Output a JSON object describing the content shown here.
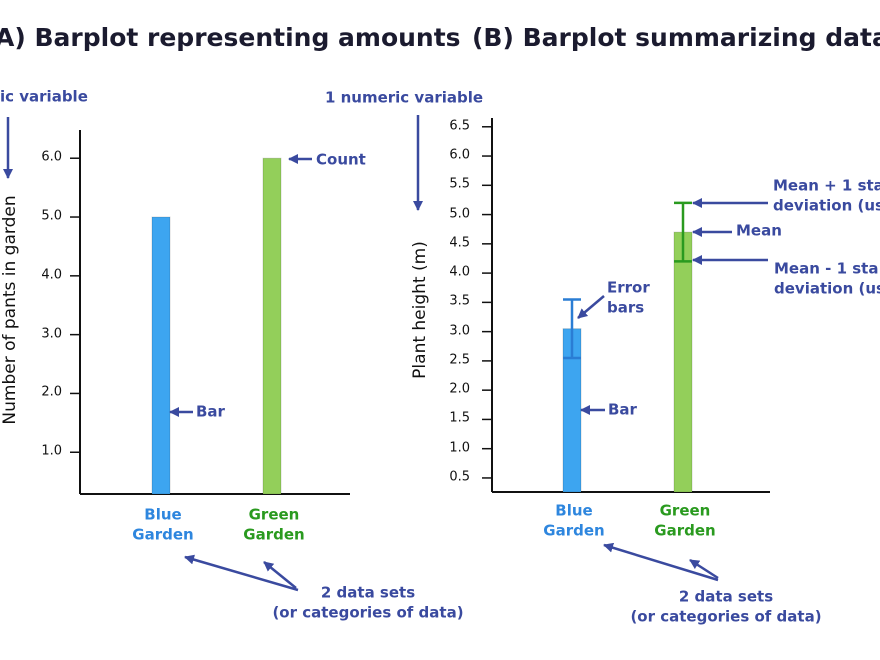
{
  "chart_data": [
    {
      "type": "bar",
      "title": "A) Barplot representing amounts",
      "ylabel": "Number of pants in garden",
      "categories": [
        "Blue\nGarden",
        "Green\nGarden"
      ],
      "values": [
        5.0,
        6.0
      ],
      "colors": [
        "#3da5f0",
        "#93cf5a"
      ],
      "label_colors": [
        "#2e86de",
        "#2a9a1f"
      ],
      "ylim": [
        0.29,
        6.48
      ],
      "yticks": [
        {
          "value": 1,
          "label": "1.0"
        },
        {
          "value": 2,
          "label": "2.0"
        },
        {
          "value": 3,
          "label": "3.0"
        },
        {
          "value": 4,
          "label": "4.0"
        },
        {
          "value": 5,
          "label": "5.0"
        },
        {
          "value": 6,
          "label": "6.0"
        }
      ],
      "annotation_color": "#3a4a9f",
      "annotations": [
        "ic variable",
        "Count",
        "Bar",
        "2 data sets\n(or categories of data)"
      ]
    },
    {
      "type": "bar",
      "title": "(B) Barplot summarizing data se",
      "ylabel": "Plant height (m)",
      "categories": [
        "Blue\nGarden",
        "Green\nGarden"
      ],
      "values": [
        3.05,
        4.7
      ],
      "errors": [
        0.5,
        0.5
      ],
      "colors": [
        "#3da5f0",
        "#93cf5a"
      ],
      "error_colors": [
        "#2a7dd4",
        "#2a9a1f"
      ],
      "label_colors": [
        "#2e86de",
        "#2a9a1f"
      ],
      "ylim": [
        0.26,
        6.65
      ],
      "yticks": [
        0.5,
        {
          "value": 1,
          "label": "1.0"
        },
        1.5,
        {
          "value": 2,
          "label": "2.0"
        },
        2.5,
        {
          "value": 3,
          "label": "3.0"
        },
        3.5,
        {
          "value": 4,
          "label": "4.0"
        },
        4.5,
        {
          "value": 5,
          "label": "5.0"
        },
        5.5,
        {
          "value": 6,
          "label": "6.0"
        },
        6.5
      ],
      "annotation_color": "#3a4a9f",
      "annotations": [
        "1 numeric variable",
        "Error\nbars",
        "Bar",
        "Mean + 1 sta\ndeviation (us",
        "Mean",
        "Mean - 1 sta\ndeviation (us",
        "2 data sets\n(or categories of data)"
      ]
    }
  ]
}
